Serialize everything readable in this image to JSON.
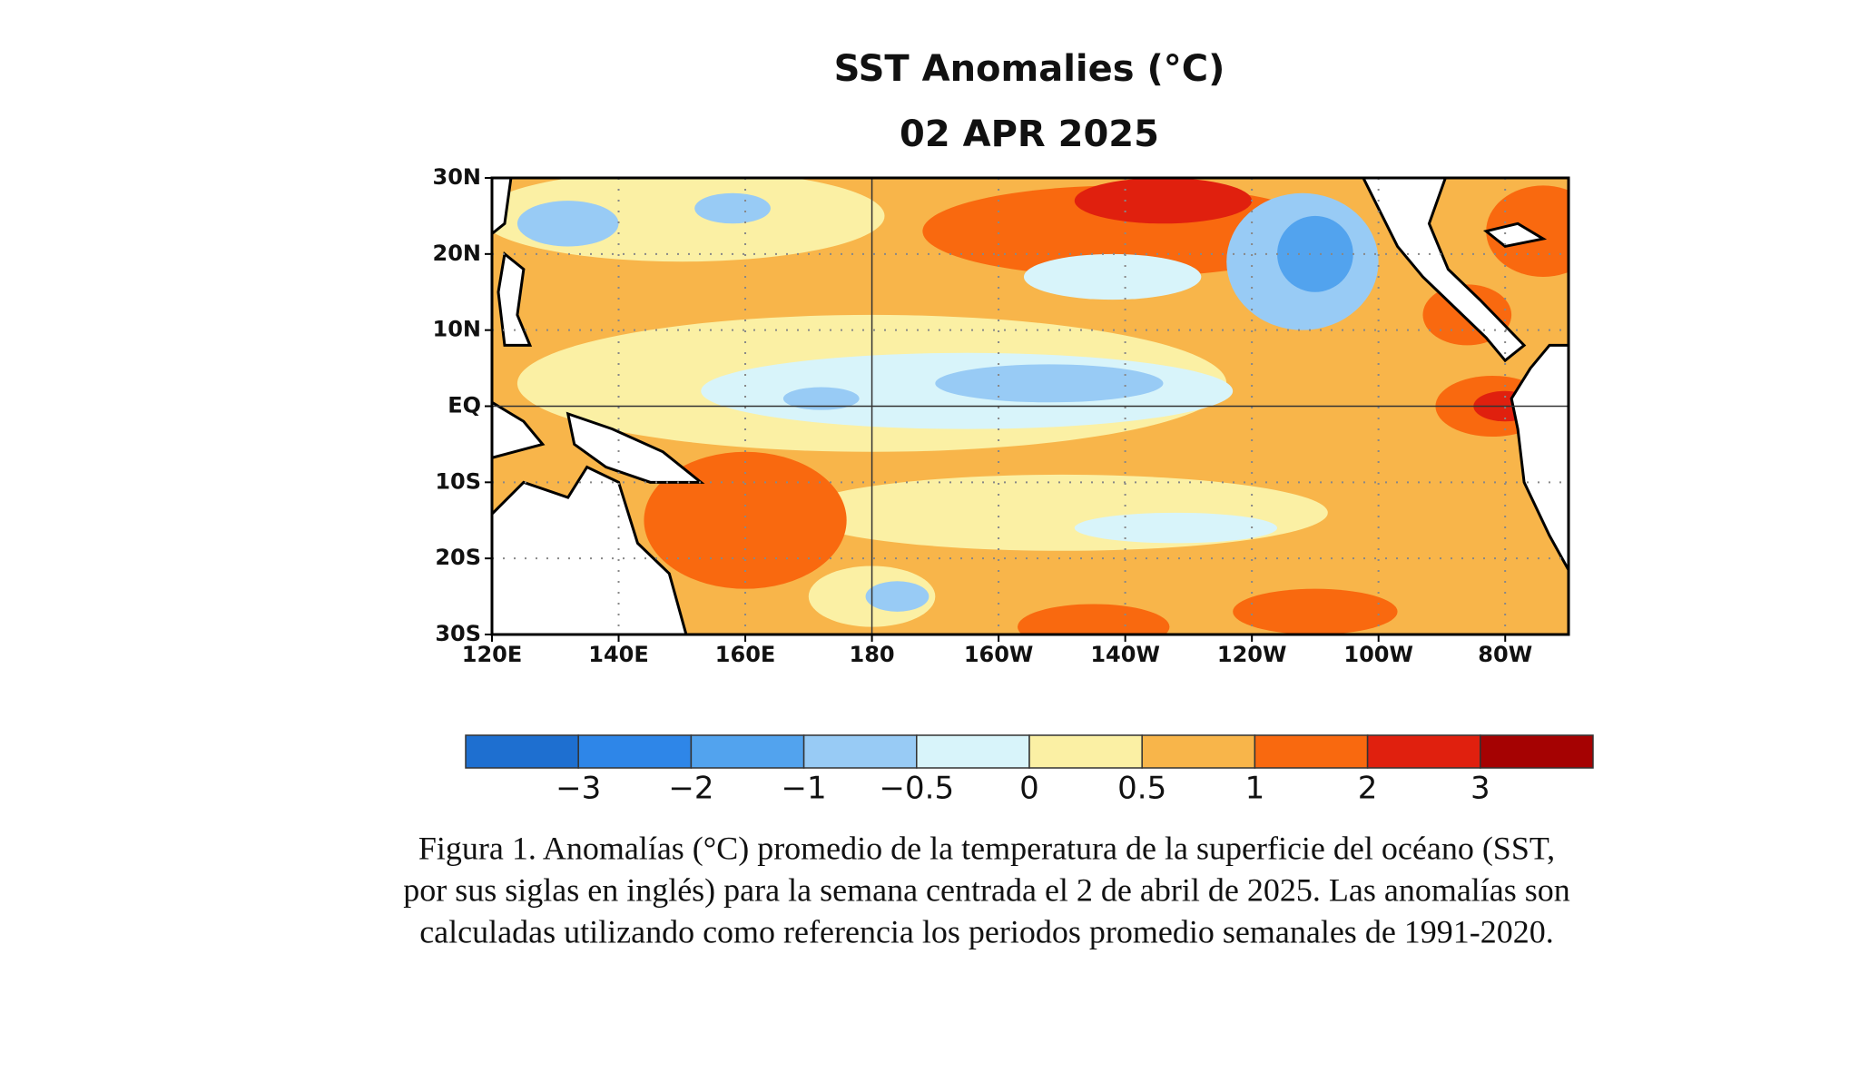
{
  "title": "SST Anomalies (°C)",
  "subtitle": "02 APR 2025",
  "latitude_labels": [
    "30N",
    "20N",
    "10N",
    "EQ",
    "10S",
    "20S",
    "30S"
  ],
  "longitude_labels": [
    "120E",
    "140E",
    "160E",
    "180",
    "160W",
    "140W",
    "120W",
    "100W",
    "80W"
  ],
  "colorbar": {
    "colors": [
      "#1e6fd0",
      "#2e86e8",
      "#52a3ee",
      "#98cbf5",
      "#d8f4fa",
      "#fbf0a4",
      "#f8b54a",
      "#f9690f",
      "#e0200e",
      "#a50202"
    ],
    "labels": [
      "−3",
      "−2",
      "−1",
      "−0.5",
      "0",
      "0.5",
      "1",
      "2",
      "3"
    ]
  },
  "caption": [
    "Figura 1. Anomalías (°C) promedio de la temperatura de la superficie del océano (SST,",
    "por sus siglas en inglés) para la semana centrada el 2 de abril de 2025. Las anomalías son",
    "calculadas utilizando como referencia los periodos promedio semanales de 1991-2020."
  ]
}
